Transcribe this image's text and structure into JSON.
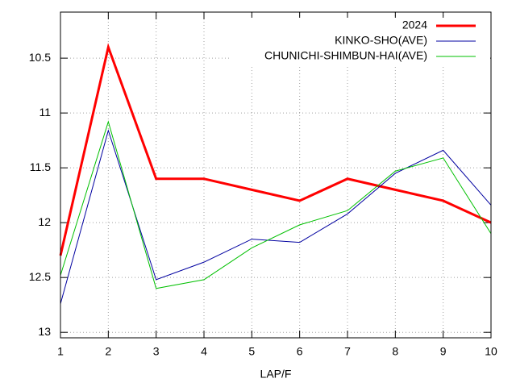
{
  "chart_data": {
    "type": "line",
    "x_label": "LAP/F",
    "x": [
      1,
      2,
      3,
      4,
      5,
      6,
      7,
      8,
      9,
      10
    ],
    "xlim": [
      1,
      10
    ],
    "xticks": [
      1,
      2,
      3,
      4,
      5,
      6,
      7,
      8,
      9,
      10
    ],
    "ylim": [
      10.08,
      13.05
    ],
    "yticks": [
      10.5,
      11,
      11.5,
      12,
      12.5,
      13
    ],
    "y_reversed": true,
    "grid": true,
    "legend": "top-right",
    "series": [
      {
        "name": "2024",
        "color": "#ff0000",
        "width": 3,
        "values": [
          12.3,
          10.4,
          11.6,
          11.6,
          11.7,
          11.8,
          11.6,
          11.7,
          11.8,
          12.0
        ]
      },
      {
        "name": "KINKO-SHO(AVE)",
        "color": "#0000a0",
        "width": 1,
        "values": [
          12.74,
          11.16,
          12.52,
          12.36,
          12.15,
          12.18,
          11.92,
          11.55,
          11.34,
          11.84
        ]
      },
      {
        "name": "CHUNICHI-SHIMBUN-HAI(AVE)",
        "color": "#00c000",
        "width": 1,
        "values": [
          12.48,
          11.08,
          12.6,
          12.52,
          12.23,
          12.02,
          11.89,
          11.53,
          11.41,
          12.1
        ]
      }
    ]
  }
}
